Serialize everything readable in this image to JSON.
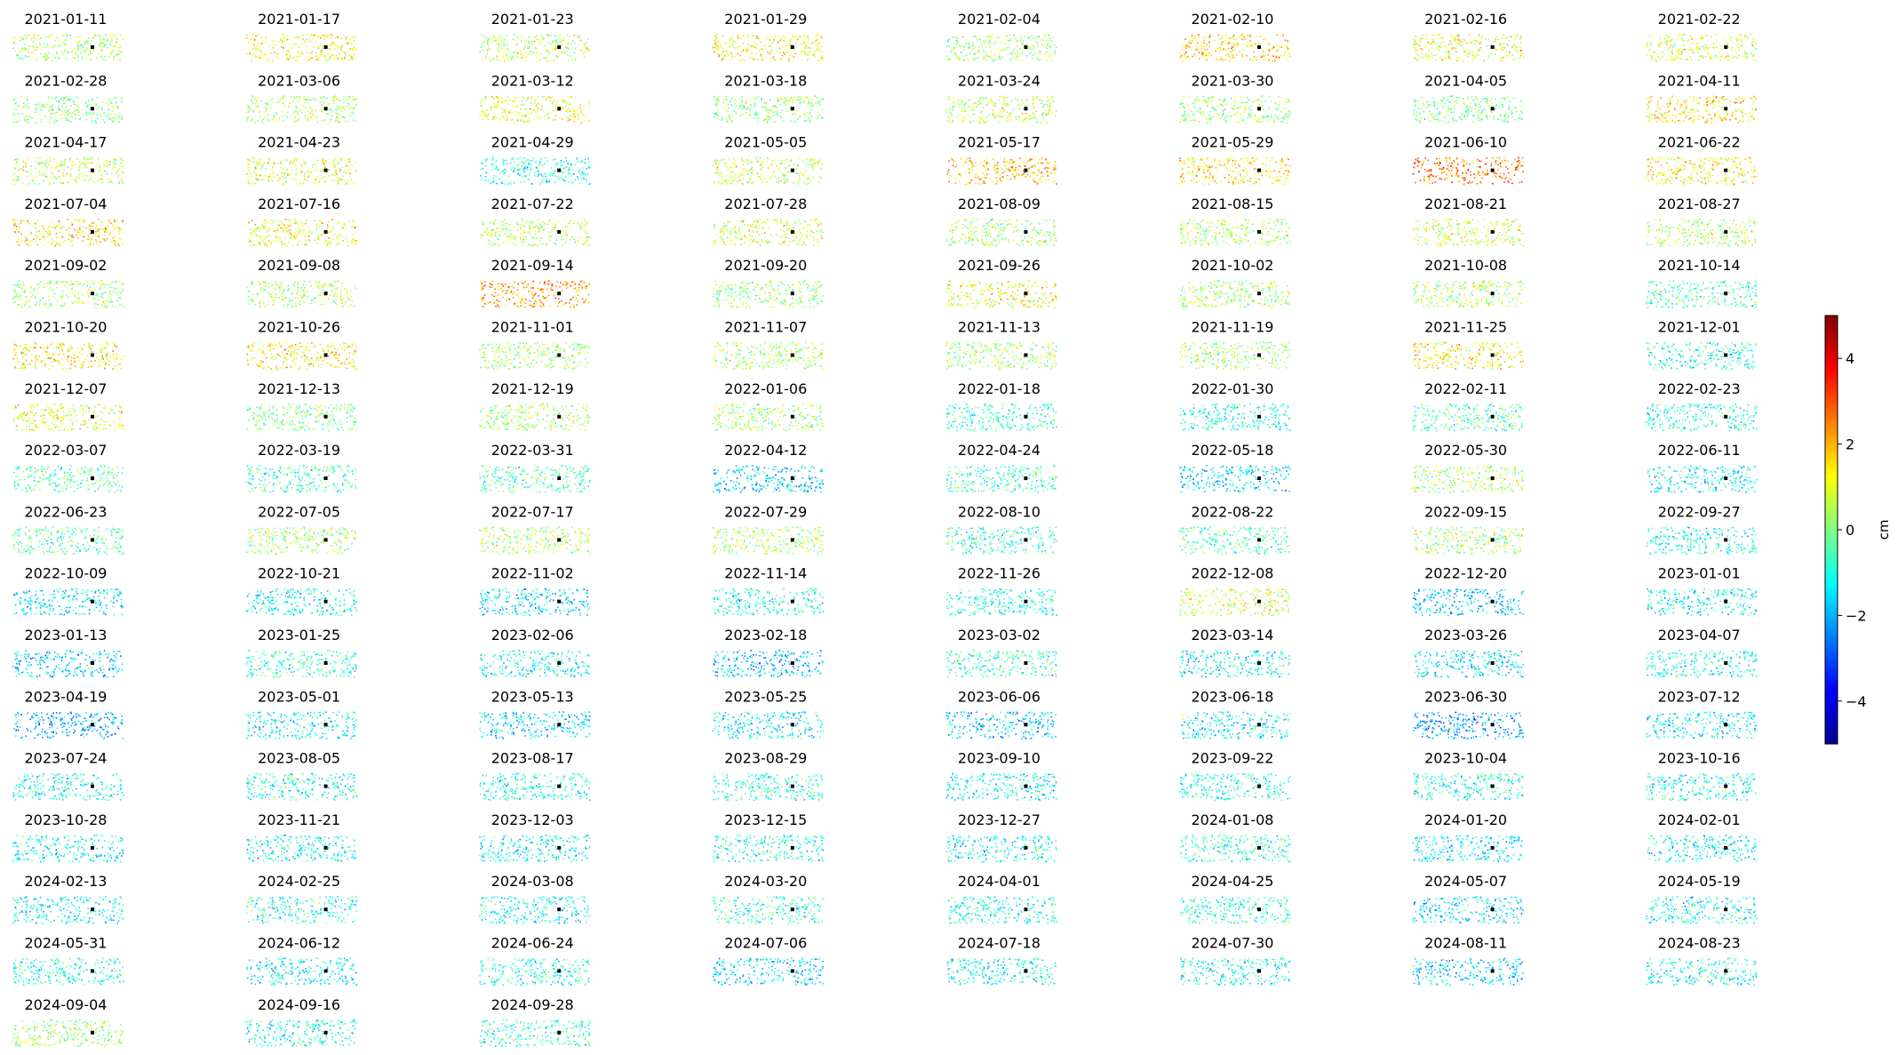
{
  "figure": {
    "colormap": "jet",
    "colorbar": {
      "label": "cm",
      "range": [
        -5,
        5
      ],
      "ticks": [
        -4,
        -2,
        0,
        2,
        4
      ],
      "tick_labels": [
        "−4",
        "−2",
        "0",
        "2",
        "4"
      ]
    }
  },
  "chart_data": {
    "type": "scatter",
    "description": "Small-multiples map grid of per-epoch point displacement values colored with a jet colormap; one panel per acquisition date, reference point marked in black.",
    "layout": "8 columns per row, panels in chronological order",
    "value_range": [
      -5,
      5
    ],
    "unit": "cm",
    "panel_mean_cm": [
      0.5,
      1.2,
      0.6,
      1.3,
      0.4,
      1.6,
      1.0,
      0.9,
      0.2,
      0.4,
      1.1,
      0.2,
      0.7,
      0.3,
      0.0,
      1.5,
      0.6,
      1.0,
      -1.0,
      0.8,
      1.9,
      1.5,
      2.6,
      1.4,
      1.5,
      1.2,
      0.6,
      0.9,
      0.3,
      0.4,
      0.9,
      0.5,
      0.3,
      0.4,
      2.3,
      0.2,
      1.2,
      0.4,
      0.5,
      -0.6,
      1.5,
      1.5,
      0.4,
      0.4,
      0.3,
      0.3,
      1.4,
      -0.9,
      1.0,
      0.0,
      0.4,
      0.3,
      -0.8,
      -1.0,
      -0.5,
      -1.0,
      -0.4,
      -0.6,
      -0.6,
      -1.6,
      -0.6,
      -1.5,
      0.4,
      -1.2,
      -0.4,
      0.4,
      0.5,
      0.5,
      -0.8,
      -0.6,
      0.4,
      -1.0,
      -1.4,
      -1.2,
      -1.6,
      -1.0,
      -1.0,
      0.8,
      -1.8,
      -1.2,
      -1.6,
      -0.8,
      -1.1,
      -1.8,
      -0.7,
      -1.3,
      -1.4,
      -1.0,
      -2.0,
      -1.3,
      -1.6,
      -1.4,
      -1.8,
      -1.2,
      -2.2,
      -1.2,
      -1.2,
      -1.0,
      -1.0,
      -0.8,
      -1.3,
      -1.0,
      -1.0,
      -1.0,
      -1.2,
      -1.1,
      -1.2,
      -1.0,
      -1.1,
      -0.8,
      -1.3,
      -1.2,
      -1.3,
      -0.9,
      -1.2,
      -0.8,
      -1.0,
      -0.8,
      -1.4,
      -1.2,
      -1.0,
      -1.3,
      -0.9,
      -1.6,
      -1.2,
      -1.1,
      -1.6,
      -1.0,
      0.3,
      -1.0,
      -0.8
    ],
    "panels": [
      "2021-01-11",
      "2021-01-17",
      "2021-01-23",
      "2021-01-29",
      "2021-02-04",
      "2021-02-10",
      "2021-02-16",
      "2021-02-22",
      "2021-02-28",
      "2021-03-06",
      "2021-03-12",
      "2021-03-18",
      "2021-03-24",
      "2021-03-30",
      "2021-04-05",
      "2021-04-11",
      "2021-04-17",
      "2021-04-23",
      "2021-04-29",
      "2021-05-05",
      "2021-05-17",
      "2021-05-29",
      "2021-06-10",
      "2021-06-22",
      "2021-07-04",
      "2021-07-16",
      "2021-07-22",
      "2021-07-28",
      "2021-08-09",
      "2021-08-15",
      "2021-08-21",
      "2021-08-27",
      "2021-09-02",
      "2021-09-08",
      "2021-09-14",
      "2021-09-20",
      "2021-09-26",
      "2021-10-02",
      "2021-10-08",
      "2021-10-14",
      "2021-10-20",
      "2021-10-26",
      "2021-11-01",
      "2021-11-07",
      "2021-11-13",
      "2021-11-19",
      "2021-11-25",
      "2021-12-01",
      "2021-12-07",
      "2021-12-13",
      "2021-12-19",
      "2022-01-06",
      "2022-01-18",
      "2022-01-30",
      "2022-02-11",
      "2022-02-23",
      "2022-03-07",
      "2022-03-19",
      "2022-03-31",
      "2022-04-12",
      "2022-04-24",
      "2022-05-18",
      "2022-05-30",
      "2022-06-11",
      "2022-06-23",
      "2022-07-05",
      "2022-07-17",
      "2022-07-29",
      "2022-08-10",
      "2022-08-22",
      "2022-09-15",
      "2022-09-27",
      "2022-10-09",
      "2022-10-21",
      "2022-11-02",
      "2022-11-14",
      "2022-11-26",
      "2022-12-08",
      "2022-12-20",
      "2023-01-01",
      "2023-01-13",
      "2023-01-25",
      "2023-02-06",
      "2023-02-18",
      "2023-03-02",
      "2023-03-14",
      "2023-03-26",
      "2023-04-07",
      "2023-04-19",
      "2023-05-01",
      "2023-05-13",
      "2023-05-25",
      "2023-06-06",
      "2023-06-18",
      "2023-06-30",
      "2023-07-12",
      "2023-07-24",
      "2023-08-05",
      "2023-08-17",
      "2023-08-29",
      "2023-09-10",
      "2023-09-22",
      "2023-10-04",
      "2023-10-16",
      "2023-10-28",
      "2023-11-21",
      "2023-12-03",
      "2023-12-15",
      "2023-12-27",
      "2024-01-08",
      "2024-01-20",
      "2024-02-01",
      "2024-02-13",
      "2024-02-25",
      "2024-03-08",
      "2024-03-20",
      "2024-04-01",
      "2024-04-25",
      "2024-05-07",
      "2024-05-19",
      "2024-05-31",
      "2024-06-12",
      "2024-06-24",
      "2024-07-06",
      "2024-07-18",
      "2024-07-30",
      "2024-08-11",
      "2024-08-23",
      "2024-09-04",
      "2024-09-16",
      "2024-09-28"
    ]
  }
}
